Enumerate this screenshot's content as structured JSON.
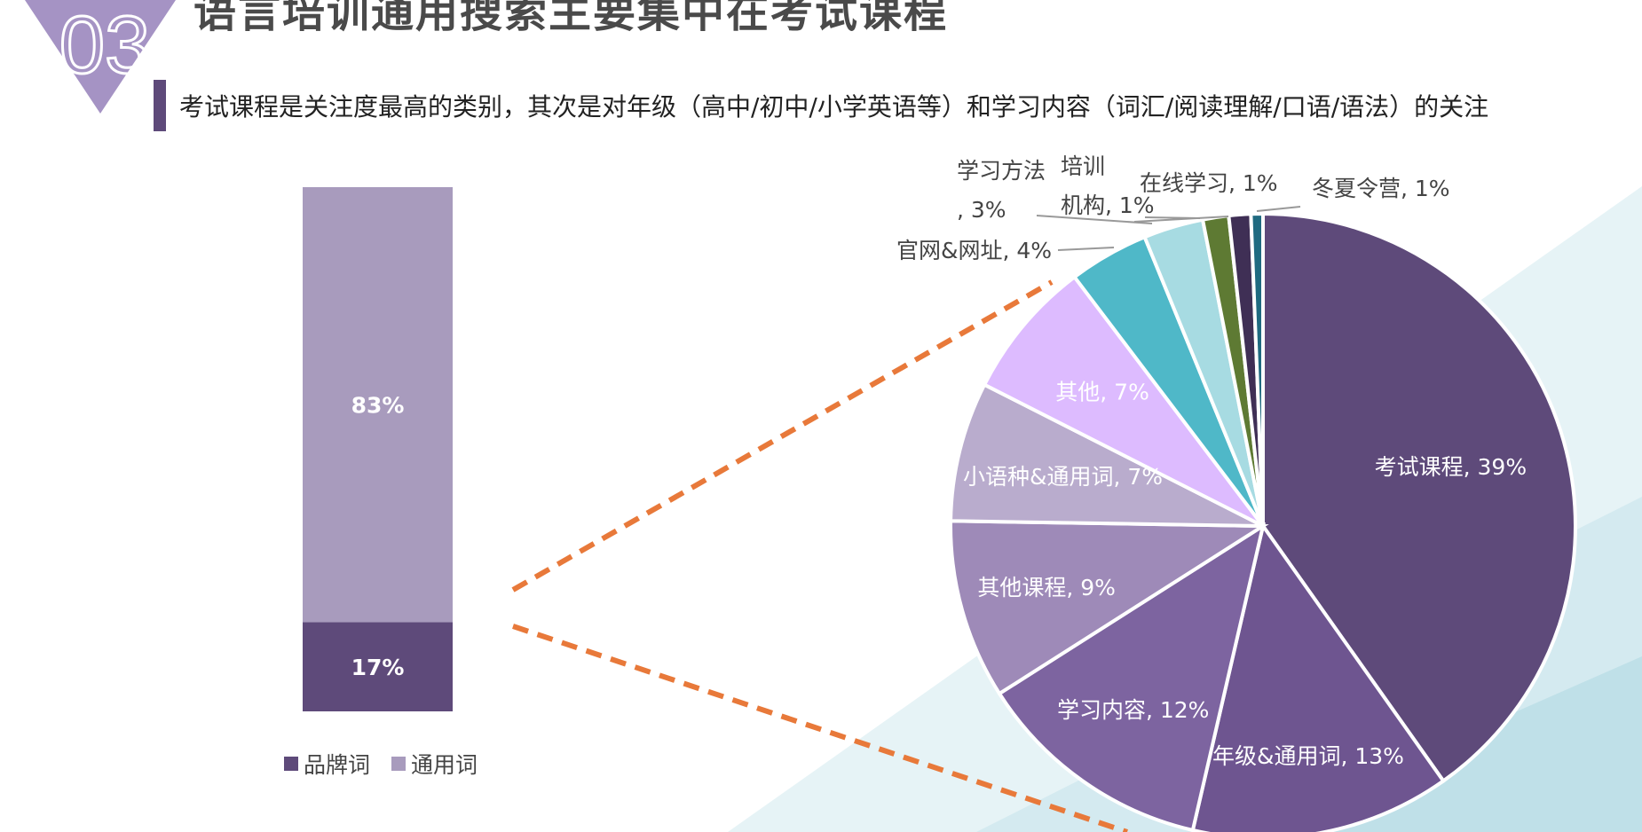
{
  "badge_number": "03",
  "title": "语言培训通用搜索主要集中在考试课程",
  "subtitle": "考试课程是关注度最高的类别，其次是对年级（高中/初中/小学英语等）和学习内容（词汇/阅读理解/口语/语法）的关注",
  "colors": {
    "accent": "#5e4a7a",
    "badge": "#a593c4",
    "connector": "#e8793a"
  },
  "legend": [
    {
      "label": "品牌词",
      "color": "#5e4a7a"
    },
    {
      "label": "通用词",
      "color": "#a89bbd"
    }
  ],
  "chart_data": [
    {
      "type": "bar",
      "stacked": true,
      "categories": [
        ""
      ],
      "series": [
        {
          "name": "品牌词",
          "values": [
            17
          ],
          "label": "17%",
          "color": "#5e4a7a"
        },
        {
          "name": "通用词",
          "values": [
            83
          ],
          "label": "83%",
          "color": "#a89bbd"
        }
      ],
      "ylim": [
        0,
        100
      ],
      "legend_position": "bottom"
    },
    {
      "type": "pie",
      "slices": [
        {
          "label": "考试课程, 39%",
          "value": 39,
          "color": "#5e4a7a"
        },
        {
          "label": "年级&通用词, 13%",
          "value": 13,
          "color": "#6e5590"
        },
        {
          "label": "学习内容, 12%",
          "value": 12,
          "color": "#7d64a0"
        },
        {
          "label": "其他课程, 9%",
          "value": 9,
          "color": "#9e8ab8"
        },
        {
          "label": "小语种&通用词, 7%",
          "value": 7,
          "color": "#b9accd"
        },
        {
          "label": "其他, 7%",
          "value": 7,
          "color": "#ddbbff"
        },
        {
          "label": "官网&网址, 4%",
          "value": 4,
          "color": "#4fb8c8"
        },
        {
          "label": "学习方法, 3%",
          "value": 3,
          "color": "#a7dbe2"
        },
        {
          "label": "在线学习, 1%",
          "value": 1.3,
          "color": "#5e7a33"
        },
        {
          "label": "培训机构, 1%",
          "value": 1.1,
          "color": "#3f2f55"
        },
        {
          "label": "冬夏令营, 1%",
          "value": 0.6,
          "color": "#1f6a80"
        }
      ]
    }
  ]
}
